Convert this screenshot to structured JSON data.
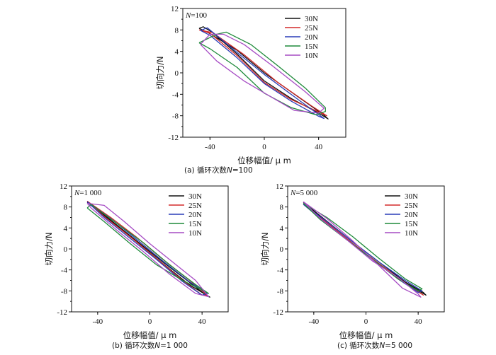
{
  "colors": {
    "30N": "#111111",
    "25N": "#d42a2a",
    "20N": "#2a3db8",
    "15N": "#1e8a3a",
    "10N": "#a64bc4"
  },
  "chart_data": [
    {
      "id": "a",
      "type": "line",
      "caption_prefix": "(a)  循环次数",
      "caption_var": "N",
      "caption_value": "=100",
      "annotation_var": "N",
      "annotation_value": "=100",
      "xlabel": "位移幅值/ μ m",
      "ylabel": "切向力/N",
      "xlim": [
        -60,
        60
      ],
      "ylim": [
        -12,
        12
      ],
      "xticks": [
        -40,
        0,
        40
      ],
      "yticks": [
        12,
        8,
        4,
        0,
        -4,
        -8,
        -12
      ],
      "legend_position": "top-right",
      "series": [
        {
          "name": "30N",
          "loop": [
            [
              -48,
              8.3
            ],
            [
              -45,
              8.6
            ],
            [
              -38,
              7.5
            ],
            [
              -20,
              3.5
            ],
            [
              0,
              -1.5
            ],
            [
              20,
              -4.8
            ],
            [
              40,
              -7.5
            ],
            [
              47,
              -8.6
            ],
            [
              44,
              -7.9
            ],
            [
              25,
              -4.5
            ],
            [
              0,
              0.0
            ],
            [
              -20,
              4.2
            ],
            [
              -40,
              7.3
            ],
            [
              -48,
              8.3
            ]
          ]
        },
        {
          "name": "25N",
          "loop": [
            [
              -48,
              8.0
            ],
            [
              -40,
              7.4
            ],
            [
              -20,
              3.2
            ],
            [
              0,
              -1.8
            ],
            [
              20,
              -5.0
            ],
            [
              40,
              -7.3
            ],
            [
              46,
              -8.0
            ],
            [
              35,
              -6.2
            ],
            [
              10,
              -1.8
            ],
            [
              -15,
              3.4
            ],
            [
              -38,
              7.5
            ],
            [
              -48,
              8.0
            ]
          ]
        },
        {
          "name": "20N",
          "loop": [
            [
              -47,
              7.9
            ],
            [
              -40,
              7.0
            ],
            [
              -20,
              2.8
            ],
            [
              0,
              -2.0
            ],
            [
              20,
              -5.3
            ],
            [
              40,
              -8.1
            ],
            [
              44,
              -8.5
            ],
            [
              25,
              -5.0
            ],
            [
              0,
              -0.3
            ],
            [
              -20,
              3.8
            ],
            [
              -42,
              8.4
            ],
            [
              -47,
              7.9
            ]
          ]
        },
        {
          "name": "15N",
          "loop": [
            [
              -48,
              5.6
            ],
            [
              -40,
              4.5
            ],
            [
              -20,
              1.0
            ],
            [
              0,
              -3.8
            ],
            [
              20,
              -6.5
            ],
            [
              38,
              -7.8
            ],
            [
              45,
              -7.2
            ],
            [
              45,
              -6.5
            ],
            [
              30,
              -2.8
            ],
            [
              10,
              1.3
            ],
            [
              -10,
              5.3
            ],
            [
              -28,
              7.6
            ],
            [
              -35,
              7.2
            ],
            [
              -48,
              5.6
            ]
          ]
        },
        {
          "name": "10N",
          "loop": [
            [
              -47,
              5.3
            ],
            [
              -35,
              2.2
            ],
            [
              -15,
              -1.5
            ],
            [
              5,
              -4.5
            ],
            [
              22,
              -7.0
            ],
            [
              40,
              -7.5
            ],
            [
              44,
              -6.6
            ],
            [
              30,
              -3.5
            ],
            [
              5,
              1.5
            ],
            [
              -15,
              5.3
            ],
            [
              -30,
              7.2
            ],
            [
              -40,
              7.2
            ],
            [
              -47,
              5.3
            ]
          ]
        }
      ]
    },
    {
      "id": "b",
      "type": "line",
      "caption_prefix": "(b)  循环次数",
      "caption_var": "N",
      "caption_value": "=1 000",
      "annotation_var": "N",
      "annotation_value": "=1 000",
      "xlabel": "位移幅值/ μ m",
      "ylabel": "切向力/N",
      "xlim": [
        -60,
        60
      ],
      "ylim": [
        -12,
        12
      ],
      "xticks": [
        -40,
        0,
        40
      ],
      "yticks": [
        12,
        8,
        4,
        0,
        -4,
        -8,
        -12
      ],
      "legend_position": "top-right",
      "series": [
        {
          "name": "30N",
          "loop": [
            [
              -48,
              8.9
            ],
            [
              -30,
              5.5
            ],
            [
              -10,
              1.5
            ],
            [
              10,
              -2.5
            ],
            [
              30,
              -6.3
            ],
            [
              44,
              -9.0
            ],
            [
              46,
              -9.2
            ],
            [
              30,
              -6.8
            ],
            [
              10,
              -2.8
            ],
            [
              -10,
              1.3
            ],
            [
              -30,
              5.3
            ],
            [
              -48,
              8.9
            ]
          ]
        },
        {
          "name": "25N",
          "loop": [
            [
              -48,
              9.1
            ],
            [
              -30,
              6.0
            ],
            [
              -10,
              2.2
            ],
            [
              10,
              -2.0
            ],
            [
              30,
              -5.9
            ],
            [
              44,
              -8.8
            ],
            [
              40,
              -8.8
            ],
            [
              25,
              -6.0
            ],
            [
              5,
              -1.8
            ],
            [
              -15,
              2.3
            ],
            [
              -35,
              6.2
            ],
            [
              -48,
              9.1
            ]
          ]
        },
        {
          "name": "20N",
          "loop": [
            [
              -48,
              9.0
            ],
            [
              -30,
              5.8
            ],
            [
              -10,
              1.8
            ],
            [
              10,
              -2.3
            ],
            [
              30,
              -6.2
            ],
            [
              44,
              -8.5
            ],
            [
              40,
              -8.8
            ],
            [
              25,
              -6.2
            ],
            [
              5,
              -2.0
            ],
            [
              -15,
              2.0
            ],
            [
              -35,
              6.0
            ],
            [
              -48,
              9.0
            ]
          ]
        },
        {
          "name": "15N",
          "loop": [
            [
              -48,
              7.8
            ],
            [
              -35,
              5.2
            ],
            [
              -15,
              1.0
            ],
            [
              5,
              -3.0
            ],
            [
              25,
              -6.0
            ],
            [
              40,
              -7.8
            ],
            [
              45,
              -8.5
            ],
            [
              35,
              -6.8
            ],
            [
              15,
              -3.0
            ],
            [
              -5,
              1.2
            ],
            [
              -25,
              4.8
            ],
            [
              -45,
              8.5
            ],
            [
              -48,
              7.8
            ]
          ]
        },
        {
          "name": "10N",
          "loop": [
            [
              -48,
              8.7
            ],
            [
              -35,
              8.3
            ],
            [
              -20,
              5.3
            ],
            [
              0,
              1.0
            ],
            [
              20,
              -3.0
            ],
            [
              35,
              -6.0
            ],
            [
              45,
              -9.1
            ],
            [
              35,
              -8.5
            ],
            [
              15,
              -4.8
            ],
            [
              -5,
              -0.5
            ],
            [
              -25,
              3.5
            ],
            [
              -45,
              7.8
            ],
            [
              -48,
              8.7
            ]
          ]
        }
      ]
    },
    {
      "id": "c",
      "type": "line",
      "caption_prefix": "(c)  循环次数",
      "caption_var": "N",
      "caption_value": "=5 000",
      "annotation_var": "N",
      "annotation_value": "=5 000",
      "xlabel": "位移幅值/ μ m",
      "ylabel": "切向力/N",
      "xlim": [
        -60,
        60
      ],
      "ylim": [
        -12,
        12
      ],
      "xticks": [
        -40,
        0,
        40
      ],
      "yticks": [
        12,
        8,
        4,
        0,
        -4,
        -8,
        -12
      ],
      "legend_position": "top-right",
      "series": [
        {
          "name": "30N",
          "loop": [
            [
              -48,
              8.9
            ],
            [
              -30,
              5.3
            ],
            [
              -10,
              1.3
            ],
            [
              10,
              -2.5
            ],
            [
              30,
              -6.3
            ],
            [
              44,
              -8.3
            ],
            [
              46,
              -8.8
            ],
            [
              30,
              -6.5
            ],
            [
              10,
              -2.8
            ],
            [
              -10,
              1.0
            ],
            [
              -30,
              5.0
            ],
            [
              -48,
              8.9
            ]
          ]
        },
        {
          "name": "25N",
          "loop": [
            [
              -48,
              8.6
            ],
            [
              -30,
              5.0
            ],
            [
              -10,
              1.0
            ],
            [
              10,
              -2.8
            ],
            [
              30,
              -6.5
            ],
            [
              44,
              -8.8
            ],
            [
              40,
              -8.2
            ],
            [
              25,
              -5.8
            ],
            [
              5,
              -2.0
            ],
            [
              -15,
              2.0
            ],
            [
              -35,
              6.0
            ],
            [
              -48,
              8.6
            ]
          ]
        },
        {
          "name": "20N",
          "loop": [
            [
              -48,
              8.5
            ],
            [
              -30,
              5.2
            ],
            [
              -10,
              1.3
            ],
            [
              10,
              -2.5
            ],
            [
              30,
              -6.0
            ],
            [
              43,
              -8.0
            ],
            [
              40,
              -8.3
            ],
            [
              25,
              -5.8
            ],
            [
              5,
              -2.0
            ],
            [
              -15,
              1.8
            ],
            [
              -35,
              5.8
            ],
            [
              -48,
              8.5
            ]
          ]
        },
        {
          "name": "15N",
          "loop": [
            [
              -48,
              8.7
            ],
            [
              -30,
              6.0
            ],
            [
              -10,
              2.3
            ],
            [
              10,
              -1.8
            ],
            [
              30,
              -5.7
            ],
            [
              43,
              -7.6
            ],
            [
              40,
              -8.0
            ],
            [
              25,
              -5.8
            ],
            [
              5,
              -2.0
            ],
            [
              -15,
              1.8
            ],
            [
              -35,
              5.6
            ],
            [
              -48,
              8.7
            ]
          ]
        },
        {
          "name": "10N",
          "loop": [
            [
              -48,
              9.0
            ],
            [
              -30,
              5.8
            ],
            [
              -10,
              1.5
            ],
            [
              10,
              -3.2
            ],
            [
              28,
              -7.5
            ],
            [
              42,
              -9.2
            ],
            [
              40,
              -8.6
            ],
            [
              25,
              -5.5
            ],
            [
              5,
              -2.3
            ],
            [
              -15,
              1.8
            ],
            [
              -35,
              5.8
            ],
            [
              -48,
              9.0
            ]
          ]
        }
      ]
    }
  ]
}
